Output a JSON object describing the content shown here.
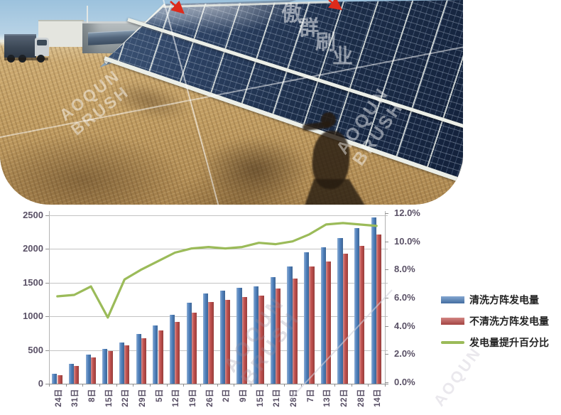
{
  "page": {
    "background": "#ffffff"
  },
  "photo": {
    "watermark_cn": "傲群刷业",
    "watermark_en_line1": "AOQUN",
    "watermark_en_line2": "BRUSH"
  },
  "chart_data": {
    "type": "bar",
    "categories": [
      "24日",
      "31日",
      "8日",
      "15日",
      "22日",
      "29日",
      "5日",
      "12日",
      "19日",
      "26日",
      "2日",
      "9日",
      "15日",
      "21日",
      "28日",
      "7日",
      "13日",
      "22日",
      "28日",
      "14日"
    ],
    "series": [
      {
        "name": "清洗方阵发电量",
        "type": "bar",
        "axis": "left",
        "color": "#4f81bd",
        "values": [
          150,
          295,
          430,
          515,
          615,
          740,
          860,
          1025,
          1200,
          1340,
          1380,
          1420,
          1450,
          1580,
          1740,
          1950,
          2030,
          2165,
          2310,
          2465
        ]
      },
      {
        "name": "不清洗方阵发电量",
        "type": "bar",
        "axis": "left",
        "color": "#c0504d",
        "values": [
          130,
          265,
          390,
          480,
          570,
          675,
          790,
          920,
          1060,
          1215,
          1245,
          1290,
          1310,
          1410,
          1565,
          1745,
          1810,
          1930,
          2050,
          2215
        ]
      },
      {
        "name": "发电量提升百分比",
        "type": "line",
        "axis": "right",
        "color": "#9bbb59",
        "values": [
          6.1,
          6.2,
          6.8,
          4.6,
          7.3,
          8.0,
          8.6,
          9.2,
          9.5,
          9.6,
          9.5,
          9.6,
          9.9,
          9.8,
          10.0,
          10.5,
          11.2,
          11.3,
          11.2,
          11.1
        ]
      }
    ],
    "left_axis": {
      "min": 0,
      "max": 2500,
      "step": 500,
      "ticks": [
        "0",
        "500",
        "1000",
        "1500",
        "2000",
        "2500"
      ]
    },
    "right_axis": {
      "min": 0,
      "max": 12,
      "step": 2,
      "ticks": [
        "0.0%",
        "2.0%",
        "4.0%",
        "6.0%",
        "8.0%",
        "10.0%",
        "12.0%"
      ]
    },
    "grid": true,
    "legend_position": "right"
  },
  "colors": {
    "axis_text": "#5a5166",
    "grid": "#c3c3c3",
    "axis_line": "#909090",
    "arrow": "#dd2b1c"
  }
}
